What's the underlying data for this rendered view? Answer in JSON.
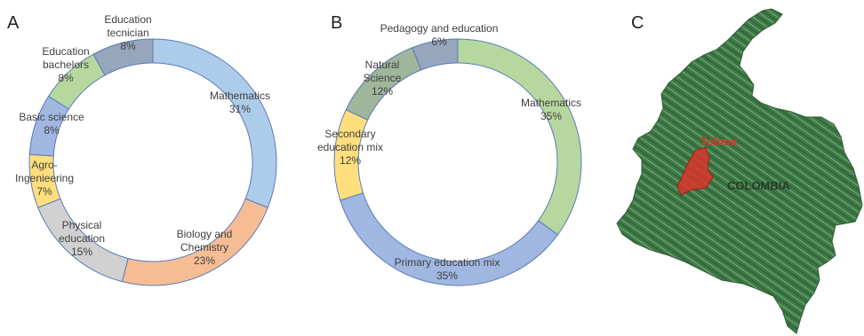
{
  "panels": [
    {
      "letter": "A"
    },
    {
      "letter": "B"
    },
    {
      "letter": "C"
    }
  ],
  "chart_data": [
    {
      "type": "pie",
      "variant": "donut",
      "slices": [
        {
          "label": "Mathematics",
          "value": 31,
          "value_label": "31%",
          "color": "#9dc3e6"
        },
        {
          "label": "Biology and Chemistry",
          "value": 23,
          "value_label": "23%",
          "color": "#f4b183"
        },
        {
          "label": "Physical education",
          "value": 15,
          "value_label": "15%",
          "color": "#c9c9c9"
        },
        {
          "label": "Agro-Ingenieering",
          "value": 7,
          "value_label": "7%",
          "color": "#ffd966"
        },
        {
          "label": "Basic science",
          "value": 8,
          "value_label": "8%",
          "color": "#8faadc"
        },
        {
          "label": "Education bachelors",
          "value": 8,
          "value_label": "8%",
          "color": "#a9d18e"
        },
        {
          "label": "Education tecnician",
          "value": 8,
          "value_label": "8%",
          "color": "#8497b0"
        }
      ]
    },
    {
      "type": "pie",
      "variant": "donut",
      "slices": [
        {
          "label": "Mathematics",
          "value": 35,
          "value_label": "35%",
          "color": "#a9d18e"
        },
        {
          "label": "Primary education mix",
          "value": 35,
          "value_label": "35%",
          "color": "#8faadc"
        },
        {
          "label": "Secondary education mix",
          "value": 12,
          "value_label": "12%",
          "color": "#ffd966"
        },
        {
          "label": "Natural Science",
          "value": 12,
          "value_label": "12%",
          "color": "#8fa98a"
        },
        {
          "label": "Pedagogy and education",
          "value": 6,
          "value_label": "6%",
          "color": "#8497b0"
        }
      ]
    }
  ],
  "map": {
    "country_label": "COLOMBIA",
    "region_label": "Tolima",
    "land_color": "#3f7a45",
    "region_color": "#d9352a"
  }
}
